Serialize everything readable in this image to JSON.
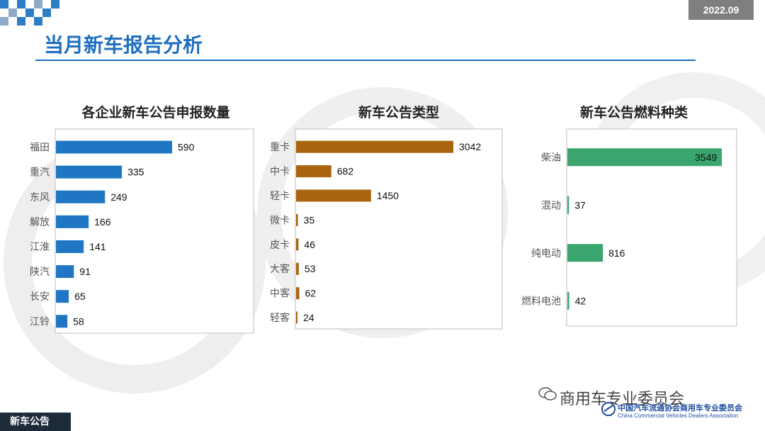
{
  "header": {
    "date": "2022.09",
    "title": "当月新车报告分析"
  },
  "footer": {
    "section_label": "新车公告",
    "brand": "商用车专业委员会",
    "association_cn": "中国汽车流通协会商用车专业委员会",
    "association_en": "China Commercial Vehicles Dealers Association"
  },
  "colors": {
    "title_blue": "#1f6fbf",
    "bar_blue": "#1f77c4",
    "bar_brown": "#a8650e",
    "bar_green": "#3aa66e",
    "checker_blue": "#2d7cc6",
    "checker_gray": "#8fa9c7"
  },
  "chart_data": [
    {
      "type": "bar",
      "orientation": "horizontal",
      "title": "各企业新车公告申报数量",
      "categories": [
        "福田",
        "重汽",
        "东风",
        "解放",
        "江淮",
        "陕汽",
        "长安",
        "江铃"
      ],
      "values": [
        590,
        335,
        249,
        166,
        141,
        91,
        65,
        58
      ],
      "color": "#1f77c4"
    },
    {
      "type": "bar",
      "orientation": "horizontal",
      "title": "新车公告类型",
      "categories": [
        "重卡",
        "中卡",
        "轻卡",
        "微卡",
        "皮卡",
        "大客",
        "中客",
        "轻客"
      ],
      "values": [
        3042,
        682,
        1450,
        35,
        46,
        53,
        62,
        24
      ],
      "color": "#a8650e"
    },
    {
      "type": "bar",
      "orientation": "horizontal",
      "title": "新车公告燃料种类",
      "categories": [
        "柴油",
        "混动",
        "纯电动",
        "燃料电池"
      ],
      "values": [
        3549,
        37,
        816,
        42
      ],
      "color": "#3aa66e"
    }
  ]
}
